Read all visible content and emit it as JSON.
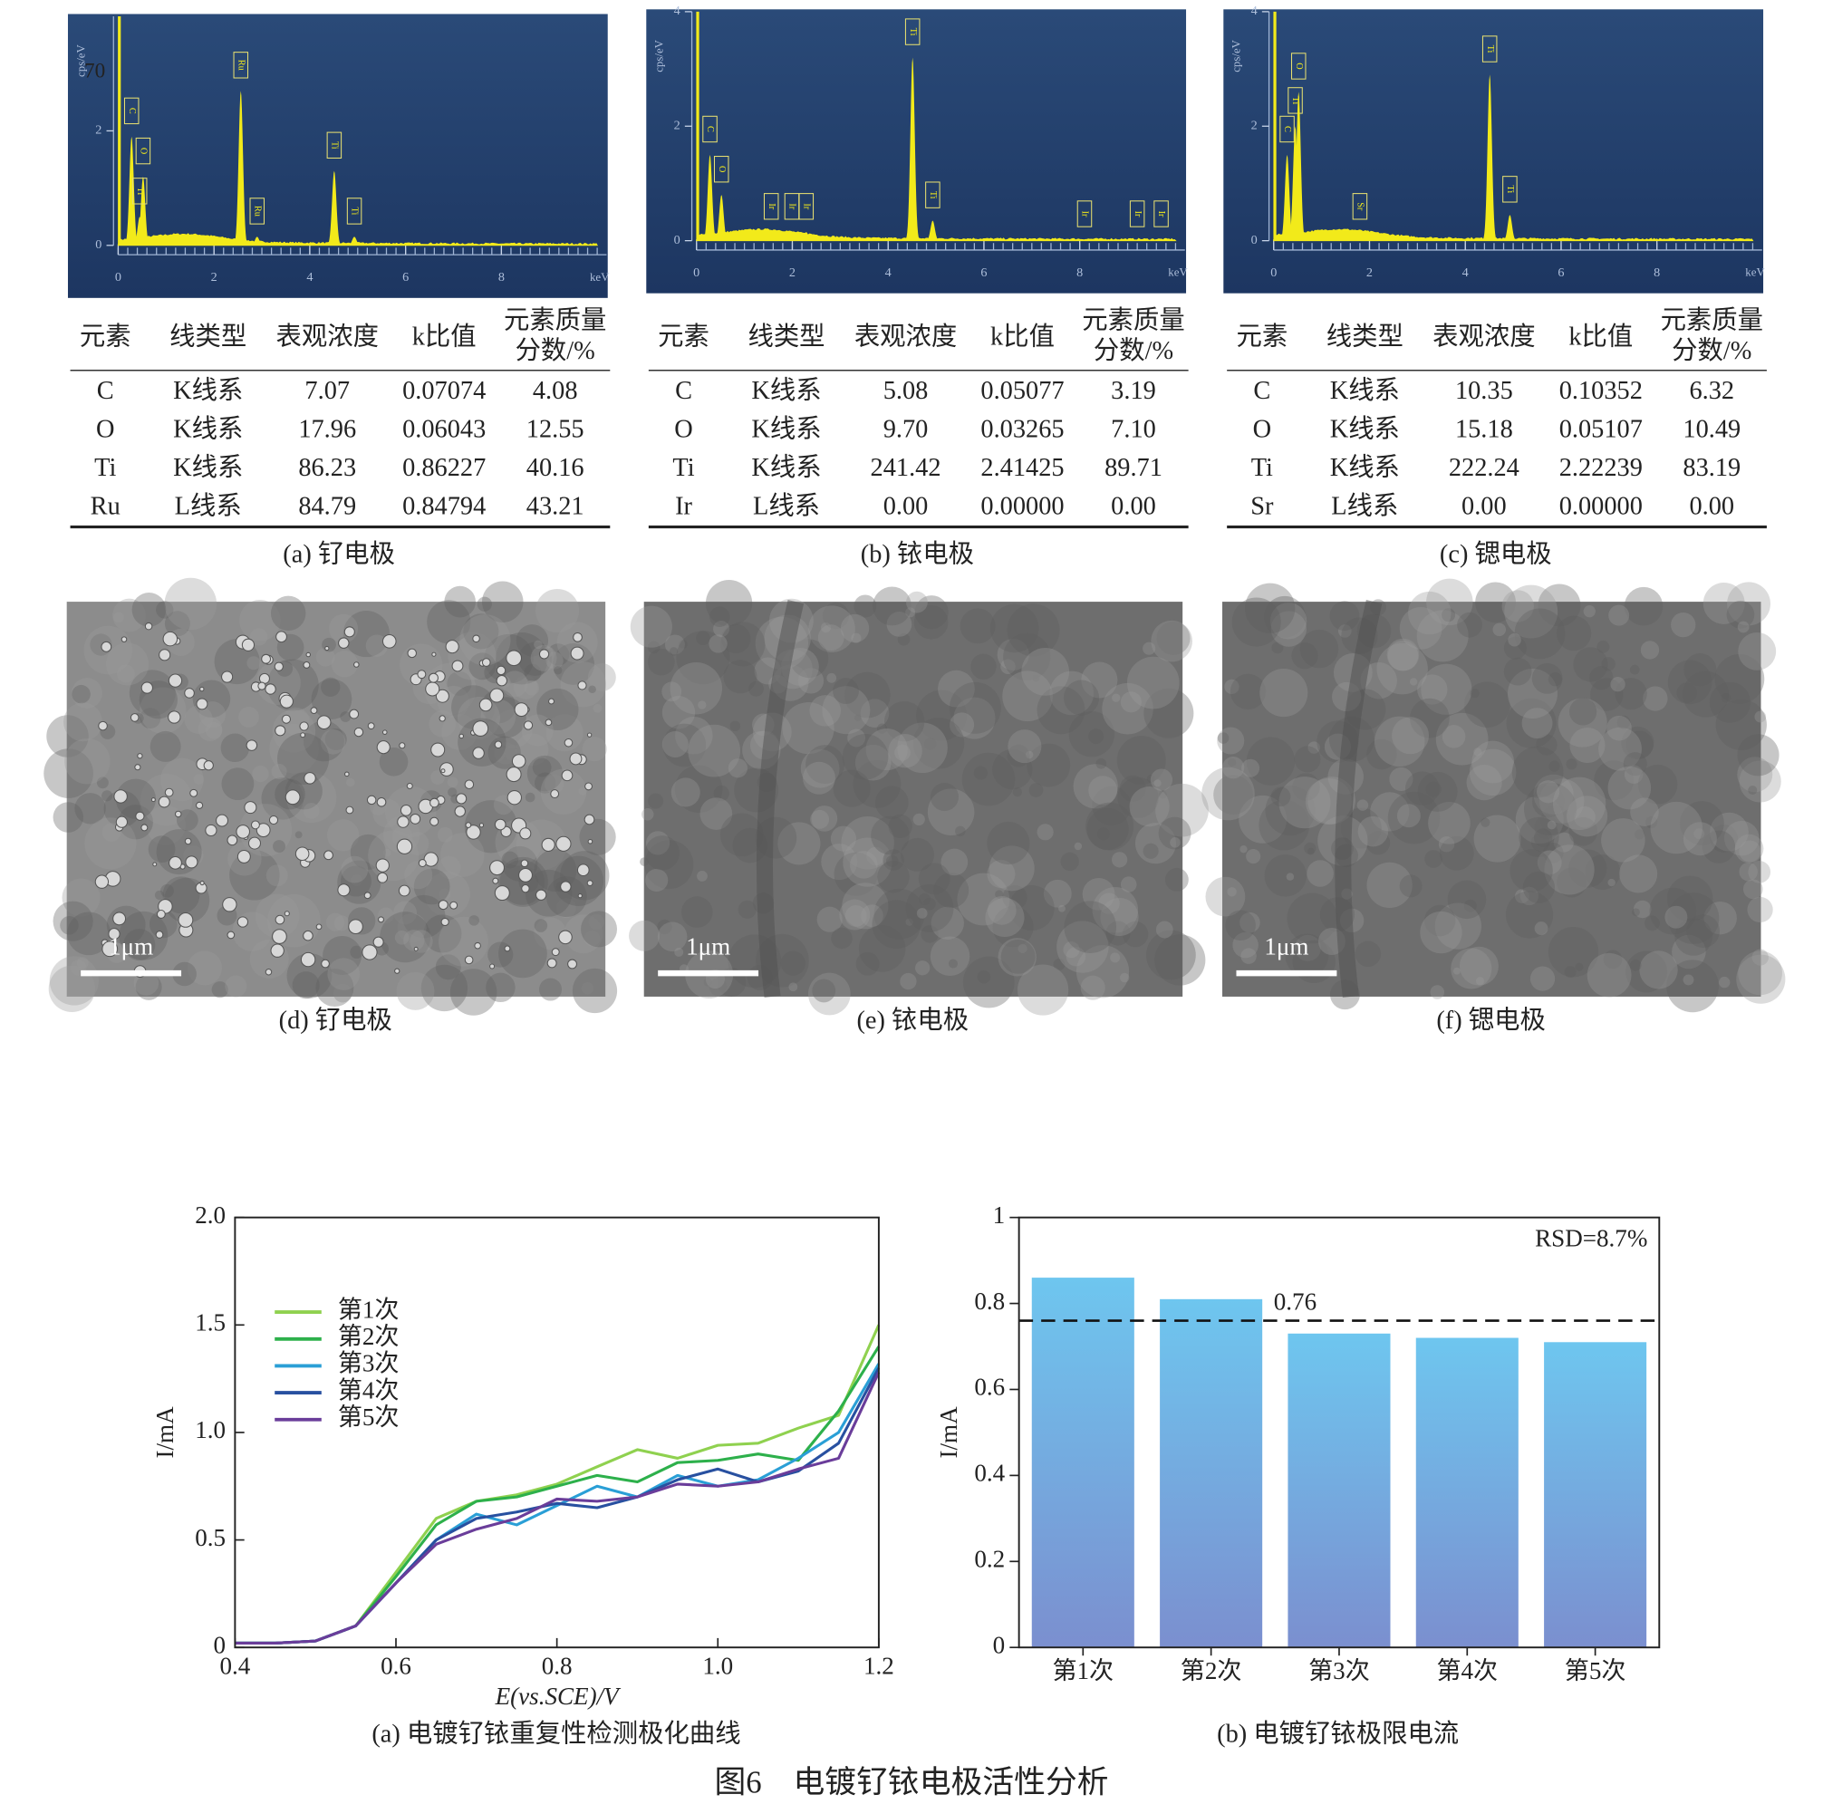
{
  "spectra": [
    {
      "y_label": "cps/eV",
      "x_label": "keV",
      "xlim": [
        0,
        10
      ],
      "ylim": [
        0,
        4
      ],
      "xticks": [
        0,
        2,
        4,
        6,
        8
      ],
      "yticks": [
        0,
        2
      ],
      "overlay_text": "70",
      "peaks": [
        {
          "label": "C",
          "x": 0.28,
          "height": 1.9
        },
        {
          "label": "O",
          "x": 0.52,
          "height": 1.2
        },
        {
          "label": "Ti",
          "x": 0.45,
          "height": 0.5
        },
        {
          "label": "Ru",
          "x": 2.56,
          "height": 2.7
        },
        {
          "label": "Ru",
          "x": 2.9,
          "height": 0.15
        },
        {
          "label": "Ti",
          "x": 4.51,
          "height": 1.3
        },
        {
          "label": "Ti",
          "x": 4.93,
          "height": 0.15
        }
      ]
    },
    {
      "y_label": "cps/eV",
      "x_label": "keV",
      "xlim": [
        0,
        10
      ],
      "ylim": [
        0,
        4
      ],
      "xticks": [
        0,
        2,
        4,
        6,
        8
      ],
      "yticks": [
        0,
        2,
        4
      ],
      "peaks": [
        {
          "label": "C",
          "x": 0.28,
          "height": 1.5
        },
        {
          "label": "O",
          "x": 0.52,
          "height": 0.8
        },
        {
          "label": "Ir",
          "x": 1.56,
          "height": 0.15
        },
        {
          "label": "Ir",
          "x": 1.99,
          "height": 0.15
        },
        {
          "label": "Ir",
          "x": 2.29,
          "height": 0.15
        },
        {
          "label": "Ti",
          "x": 4.51,
          "height": 3.2
        },
        {
          "label": "Ti",
          "x": 4.93,
          "height": 0.35
        },
        {
          "label": "Ir",
          "x": 8.1,
          "height": 0.02
        },
        {
          "label": "Ir",
          "x": 9.2,
          "height": 0.02
        },
        {
          "label": "Ir",
          "x": 9.7,
          "height": 0.02
        }
      ]
    },
    {
      "y_label": "cps/eV",
      "x_label": "keV",
      "xlim": [
        0,
        10
      ],
      "ylim": [
        0,
        4
      ],
      "xticks": [
        0,
        2,
        4,
        6,
        8
      ],
      "yticks": [
        0,
        2,
        4
      ],
      "peaks": [
        {
          "label": "C",
          "x": 0.28,
          "height": 1.5
        },
        {
          "label": "Ti",
          "x": 0.45,
          "height": 2.0
        },
        {
          "label": "O",
          "x": 0.52,
          "height": 2.6
        },
        {
          "label": "Sr",
          "x": 1.8,
          "height": 0.15
        },
        {
          "label": "Ti",
          "x": 4.51,
          "height": 2.9
        },
        {
          "label": "Ti",
          "x": 4.93,
          "height": 0.45
        }
      ]
    }
  ],
  "tables": [
    {
      "header": [
        "元素",
        "线类型",
        "表观浓度",
        "k比值",
        [
          "元素质量",
          "分数/%"
        ]
      ],
      "rows": [
        [
          "C",
          "K线系",
          "7.07",
          "0.07074",
          "4.08"
        ],
        [
          "O",
          "K线系",
          "17.96",
          "0.06043",
          "12.55"
        ],
        [
          "Ti",
          "K线系",
          "86.23",
          "0.86227",
          "40.16"
        ],
        [
          "Ru",
          "L线系",
          "84.79",
          "0.84794",
          "43.21"
        ]
      ],
      "caption": "(a) 钌电极"
    },
    {
      "header": [
        "元素",
        "线类型",
        "表观浓度",
        "k比值",
        [
          "元素质量",
          "分数/%"
        ]
      ],
      "rows": [
        [
          "C",
          "K线系",
          "5.08",
          "0.05077",
          "3.19"
        ],
        [
          "O",
          "K线系",
          "9.70",
          "0.03265",
          "7.10"
        ],
        [
          "Ti",
          "K线系",
          "241.42",
          "2.41425",
          "89.71"
        ],
        [
          "Ir",
          "L线系",
          "0.00",
          "0.00000",
          "0.00"
        ]
      ],
      "caption": "(b) 铱电极"
    },
    {
      "header": [
        "元素",
        "线类型",
        "表观浓度",
        "k比值",
        [
          "元素质量",
          "分数/%"
        ]
      ],
      "rows": [
        [
          "C",
          "K线系",
          "10.35",
          "0.10352",
          "6.32"
        ],
        [
          "O",
          "K线系",
          "15.18",
          "0.05107",
          "10.49"
        ],
        [
          "Ti",
          "K线系",
          "222.24",
          "2.22239",
          "83.19"
        ],
        [
          "Sr",
          "L线系",
          "0.00",
          "0.00000",
          "0.00"
        ]
      ],
      "caption": "(c) 锶电极"
    }
  ],
  "sem": [
    {
      "scale_label": "1μm",
      "caption": "(d) 钌电极"
    },
    {
      "scale_label": "1μm",
      "caption": "(e) 铱电极"
    },
    {
      "scale_label": "1μm",
      "caption": "(f) 锶电极"
    }
  ],
  "chart_data": [
    {
      "type": "line",
      "caption": "(a) 电镀钌铱重复性检测极化曲线",
      "x_label": "E(vs.SCE)/V",
      "y_label": "I/mA",
      "x": [
        0.4,
        0.45,
        0.5,
        0.55,
        0.6,
        0.65,
        0.7,
        0.75,
        0.8,
        0.85,
        0.9,
        0.95,
        1.0,
        1.05,
        1.1,
        1.15,
        1.2
      ],
      "series": [
        {
          "name": "第1次",
          "color": "#8fd14f",
          "values": [
            0.02,
            0.02,
            0.03,
            0.1,
            0.35,
            0.6,
            0.68,
            0.71,
            0.76,
            0.84,
            0.92,
            0.88,
            0.94,
            0.95,
            1.02,
            1.08,
            1.5
          ]
        },
        {
          "name": "第2次",
          "color": "#2db04b",
          "values": [
            0.02,
            0.02,
            0.03,
            0.1,
            0.33,
            0.57,
            0.68,
            0.7,
            0.75,
            0.8,
            0.77,
            0.86,
            0.87,
            0.9,
            0.87,
            1.1,
            1.4
          ]
        },
        {
          "name": "第3次",
          "color": "#2a9fd6",
          "values": [
            0.02,
            0.02,
            0.03,
            0.1,
            0.3,
            0.5,
            0.62,
            0.57,
            0.66,
            0.75,
            0.7,
            0.8,
            0.75,
            0.78,
            0.88,
            1.0,
            1.32
          ]
        },
        {
          "name": "第4次",
          "color": "#2850a0",
          "values": [
            0.02,
            0.02,
            0.03,
            0.1,
            0.3,
            0.5,
            0.6,
            0.63,
            0.67,
            0.65,
            0.7,
            0.78,
            0.83,
            0.77,
            0.82,
            0.95,
            1.3
          ]
        },
        {
          "name": "第5次",
          "color": "#6a3d9a",
          "values": [
            0.02,
            0.02,
            0.03,
            0.1,
            0.3,
            0.48,
            0.55,
            0.6,
            0.69,
            0.68,
            0.7,
            0.76,
            0.75,
            0.77,
            0.83,
            0.88,
            1.28
          ]
        }
      ],
      "xlim": [
        0.4,
        1.2
      ],
      "ylim": [
        0,
        2
      ],
      "xticks": [
        0.4,
        0.6,
        0.8,
        {
          "value": 1,
          "label": "1.0"
        },
        1.2
      ],
      "yticks": [
        0,
        0.5,
        {
          "value": 1,
          "label": "1.0"
        },
        1.5,
        {
          "value": 2,
          "label": "2.0"
        }
      ],
      "legend": "upper left"
    },
    {
      "type": "bar",
      "caption": "(b) 电镀钌铱极限电流",
      "y_label": "I/mA",
      "categories": [
        "第1次",
        "第2次",
        "第3次",
        "第4次",
        "第5次"
      ],
      "values": [
        0.86,
        0.81,
        0.73,
        0.72,
        0.71
      ],
      "colors": [
        "#6ec6ef",
        "#7b8fcf"
      ],
      "ylim": [
        0,
        1
      ],
      "yticks": [
        0,
        0.2,
        0.4,
        0.6,
        0.8,
        1
      ],
      "reference_line": {
        "value": 0.76,
        "label": "0.76"
      },
      "annotation": "RSD=8.7%"
    }
  ],
  "figure_title": "图6　电镀钌铱电极活性分析"
}
